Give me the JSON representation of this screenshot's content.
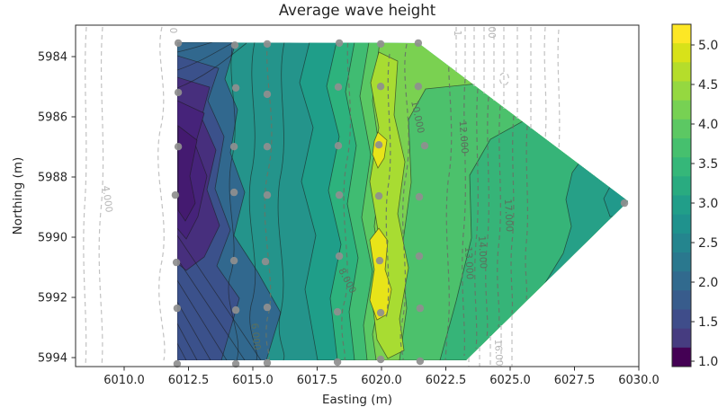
{
  "title": "Average wave height",
  "axes": {
    "xlabel": "Easting (m)",
    "ylabel": "Northing (m)",
    "xticks": [
      "6010.0",
      "6012.5",
      "6015.0",
      "6017.5",
      "6020.0",
      "6022.5",
      "6025.0",
      "6027.5",
      "6030.0"
    ],
    "yticks": [
      "5984",
      "5986",
      "5988",
      "5990",
      "5992",
      "5994"
    ]
  },
  "colorbar": {
    "ticks": [
      "5.0",
      "4.5",
      "4.0",
      "3.5",
      "3.0",
      "2.5",
      "2.0",
      "1.5",
      "1.0"
    ],
    "colors_top_to_bottom": [
      "#fde725",
      "#d8e219",
      "#b5dd2b",
      "#95d840",
      "#77d153",
      "#5cc863",
      "#46c06e",
      "#35b779",
      "#29ab80",
      "#219e89",
      "#1f928d",
      "#24858e",
      "#2a788e",
      "#316a8e",
      "#385c8c",
      "#3f4d8a",
      "#463c80",
      "#440154"
    ]
  },
  "contour_labels": [
    {
      "text": "4.000"
    },
    {
      "text": "0"
    },
    {
      "text": "1"
    },
    {
      "text": "00"
    },
    {
      "text": "6.000"
    },
    {
      "text": "8.000"
    },
    {
      "text": "10.000"
    },
    {
      "text": "12.000"
    },
    {
      "text": "13.000"
    },
    {
      "text": "14.000"
    },
    {
      "text": "17.000"
    },
    {
      "text": "16.000"
    }
  ],
  "chart_data": {
    "type": "contourf+contour+scatter",
    "title": "Average wave height",
    "xlabel": "Easting (m)",
    "ylabel": "Northing (m)",
    "xlim": [
      6008.1,
      6030.1
    ],
    "ylim_top_to_bottom": [
      5983.0,
      5994.3
    ],
    "y_axis_direction": "northing increases downward (inverted axis)",
    "colormap": "viridis",
    "filled_levels": {
      "min": 1.0,
      "max": 5.25,
      "step": 0.25
    },
    "colorbar_ticks": [
      5.0,
      4.5,
      4.0,
      3.5,
      3.0,
      2.5,
      2.0,
      1.5,
      1.0
    ],
    "overlay_dashed_contour_labels": [
      0,
      4,
      6,
      8,
      10,
      12,
      13,
      14,
      16,
      17
    ],
    "filled_region_outline": [
      [
        6012.0,
        5983.55
      ],
      [
        6021.4,
        5983.6
      ],
      [
        6029.6,
        5988.85
      ],
      [
        6023.3,
        5994.1
      ],
      [
        6012.0,
        5994.1
      ]
    ],
    "features": {
      "minimum": {
        "band": "1.25-1.75",
        "location": [
          6013.2,
          5987.6
        ]
      },
      "maxima": [
        {
          "band": "5.0-5.25",
          "location": [
            6019.9,
            5986.95
          ]
        },
        {
          "band": "5.0-5.25",
          "location": [
            6019.9,
            5990.9
          ]
        }
      ],
      "ridge": {
        "band": "4.5-5.0",
        "easting": 6020.0,
        "northing_span": [
          5984.0,
          5993.5
        ]
      }
    },
    "scatter_points": [
      [
        6012.1,
        5983.55
      ],
      [
        6014.3,
        5983.62
      ],
      [
        6015.56,
        5983.58
      ],
      [
        6018.36,
        5983.55
      ],
      [
        6019.97,
        5983.58
      ],
      [
        6021.43,
        5983.55
      ],
      [
        6012.1,
        5985.19
      ],
      [
        6014.34,
        5985.04
      ],
      [
        6015.56,
        5985.25
      ],
      [
        6018.32,
        5985.01
      ],
      [
        6019.97,
        5984.99
      ],
      [
        6021.43,
        5984.99
      ],
      [
        6012.1,
        5986.99
      ],
      [
        6014.27,
        5986.99
      ],
      [
        6015.56,
        5986.99
      ],
      [
        6018.32,
        5986.96
      ],
      [
        6019.9,
        5986.93
      ],
      [
        6021.68,
        5986.96
      ],
      [
        6011.99,
        5988.6
      ],
      [
        6014.27,
        5988.51
      ],
      [
        6015.56,
        5988.6
      ],
      [
        6018.36,
        5988.6
      ],
      [
        6019.9,
        5988.63
      ],
      [
        6021.47,
        5988.66
      ],
      [
        6012.03,
        5990.84
      ],
      [
        6014.27,
        5990.78
      ],
      [
        6015.49,
        5990.81
      ],
      [
        6018.36,
        5990.63
      ],
      [
        6019.93,
        5990.78
      ],
      [
        6021.47,
        5990.63
      ],
      [
        6012.06,
        5992.36
      ],
      [
        6014.34,
        5992.42
      ],
      [
        6015.56,
        5992.33
      ],
      [
        6018.29,
        5992.48
      ],
      [
        6019.97,
        5992.51
      ],
      [
        6021.5,
        5992.36
      ],
      [
        6012.06,
        5994.21
      ],
      [
        6014.34,
        5994.21
      ],
      [
        6015.56,
        5994.18
      ],
      [
        6018.29,
        5994.15
      ],
      [
        6019.97,
        5994.06
      ],
      [
        6021.5,
        5994.12
      ],
      [
        6029.44,
        5988.87
      ]
    ]
  }
}
